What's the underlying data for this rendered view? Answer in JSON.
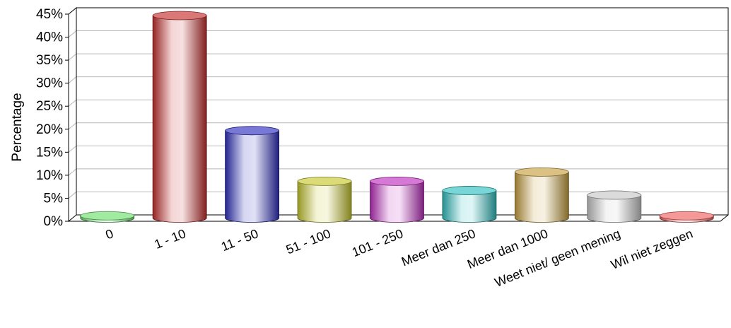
{
  "chart_data": {
    "type": "bar",
    "title": "",
    "xlabel": "",
    "ylabel": "Percentage",
    "ylim": [
      0,
      45
    ],
    "yticks": [
      "0%",
      "5%",
      "10%",
      "15%",
      "20%",
      "25%",
      "30%",
      "35%",
      "40%",
      "45%"
    ],
    "grid": true,
    "categories": [
      "0",
      "1 - 10",
      "11 - 50",
      "51 - 100",
      "101 - 250",
      "Meer dan 250",
      "Meer dan 1000",
      "Weet niet/ geen mening",
      "Wil niet zeggen"
    ],
    "values": [
      0.5,
      44,
      19,
      8,
      8,
      6,
      10,
      5,
      0.5
    ],
    "colors": [
      "#6fe06f",
      "#c62f2f",
      "#3030c0",
      "#c8c830",
      "#c030c0",
      "#30c0c0",
      "#c8a040",
      "#c8c8c8",
      "#f06060"
    ]
  }
}
